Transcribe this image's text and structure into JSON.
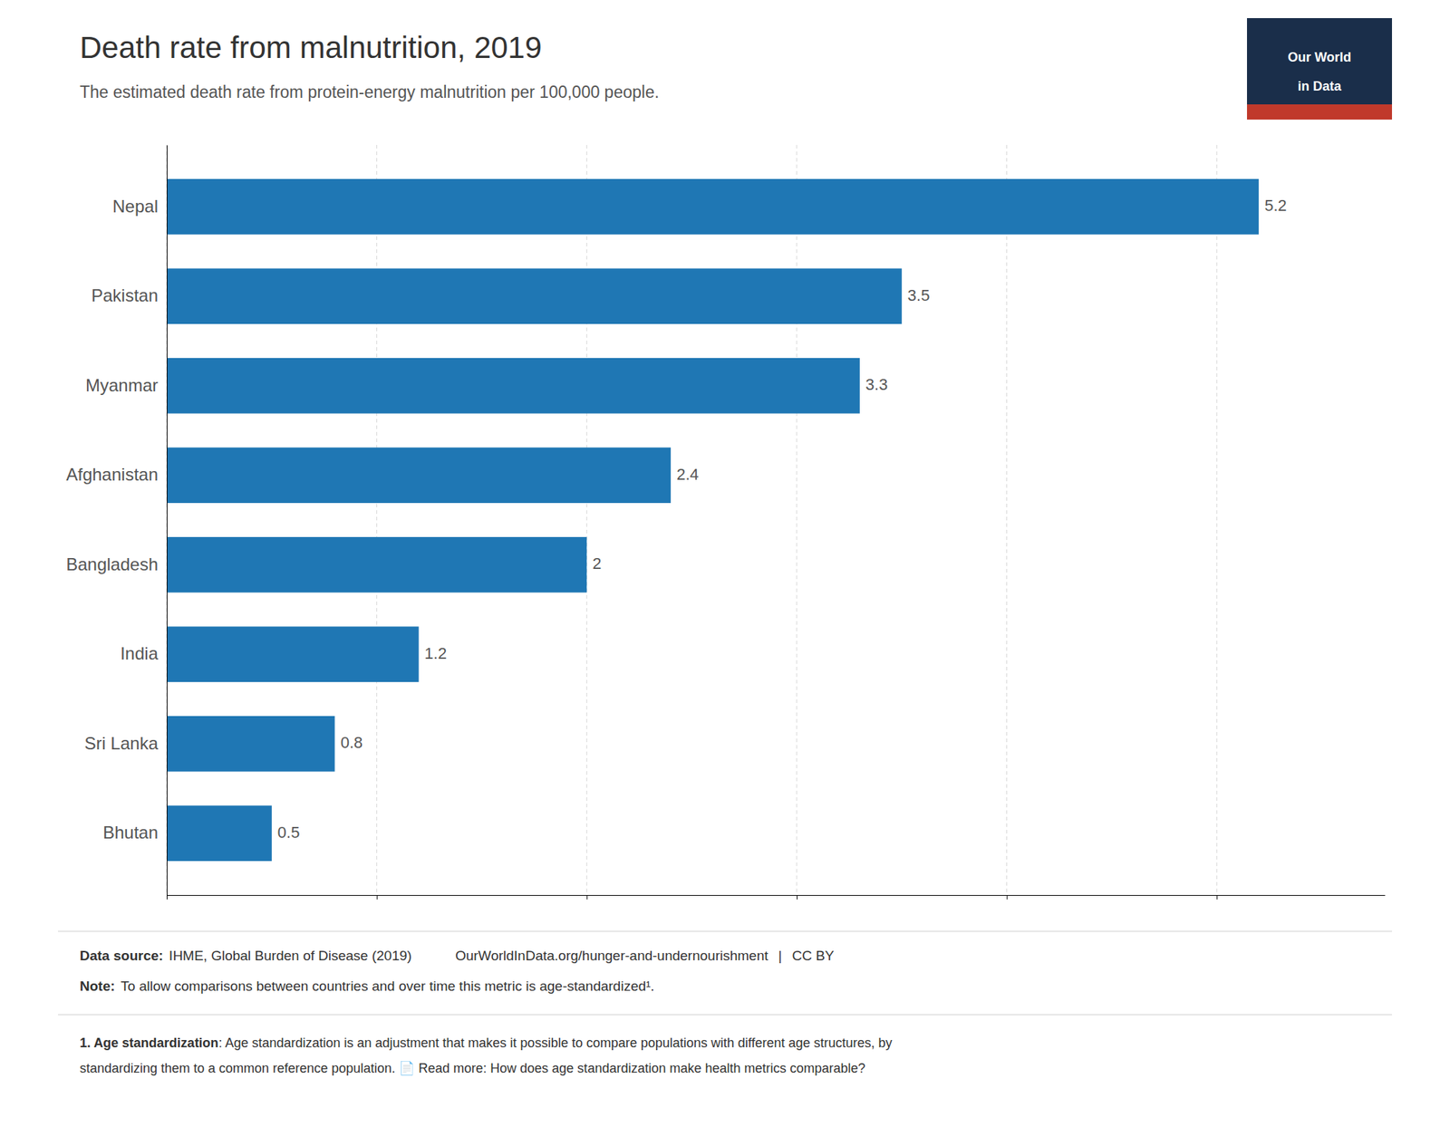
{
  "chart_data": {
    "type": "bar",
    "orientation": "horizontal",
    "title": "Death rate from malnutrition, 2019",
    "subtitle": "The estimated death rate from protein-energy malnutrition per 100,000 people.",
    "categories": [
      "Bhutan",
      "Sri Lanka",
      "India",
      "Bangladesh",
      "Afghanistan",
      "Myanmar",
      "Pakistan",
      "Nepal"
    ],
    "values": [
      0.5,
      0.8,
      1.2,
      2.0,
      2.4,
      3.3,
      3.5,
      5.2
    ],
    "xlim": [
      0,
      5.8
    ],
    "xticks": [
      0,
      1,
      2,
      3,
      4,
      5
    ],
    "grid": true,
    "data_labels": true,
    "tick_labels": "y",
    "annotations": [
      "Our World",
      "in Data",
      "Data source:",
      "IHME, Global Burden of Disease (2019)",
      "OurWorldInData.org/hunger-and-undernourishment",
      "|",
      "CC BY",
      "Note:",
      "To allow comparisons between countries and over time this metric is age-standardized¹.",
      "1. Age standardization",
      ": Age standardization is an adjustment that makes it possible to compare populations with different age structures, by",
      "standardizing them to a common reference population.  📄 Read more: How does age standardization make health metrics comparable?"
    ]
  }
}
